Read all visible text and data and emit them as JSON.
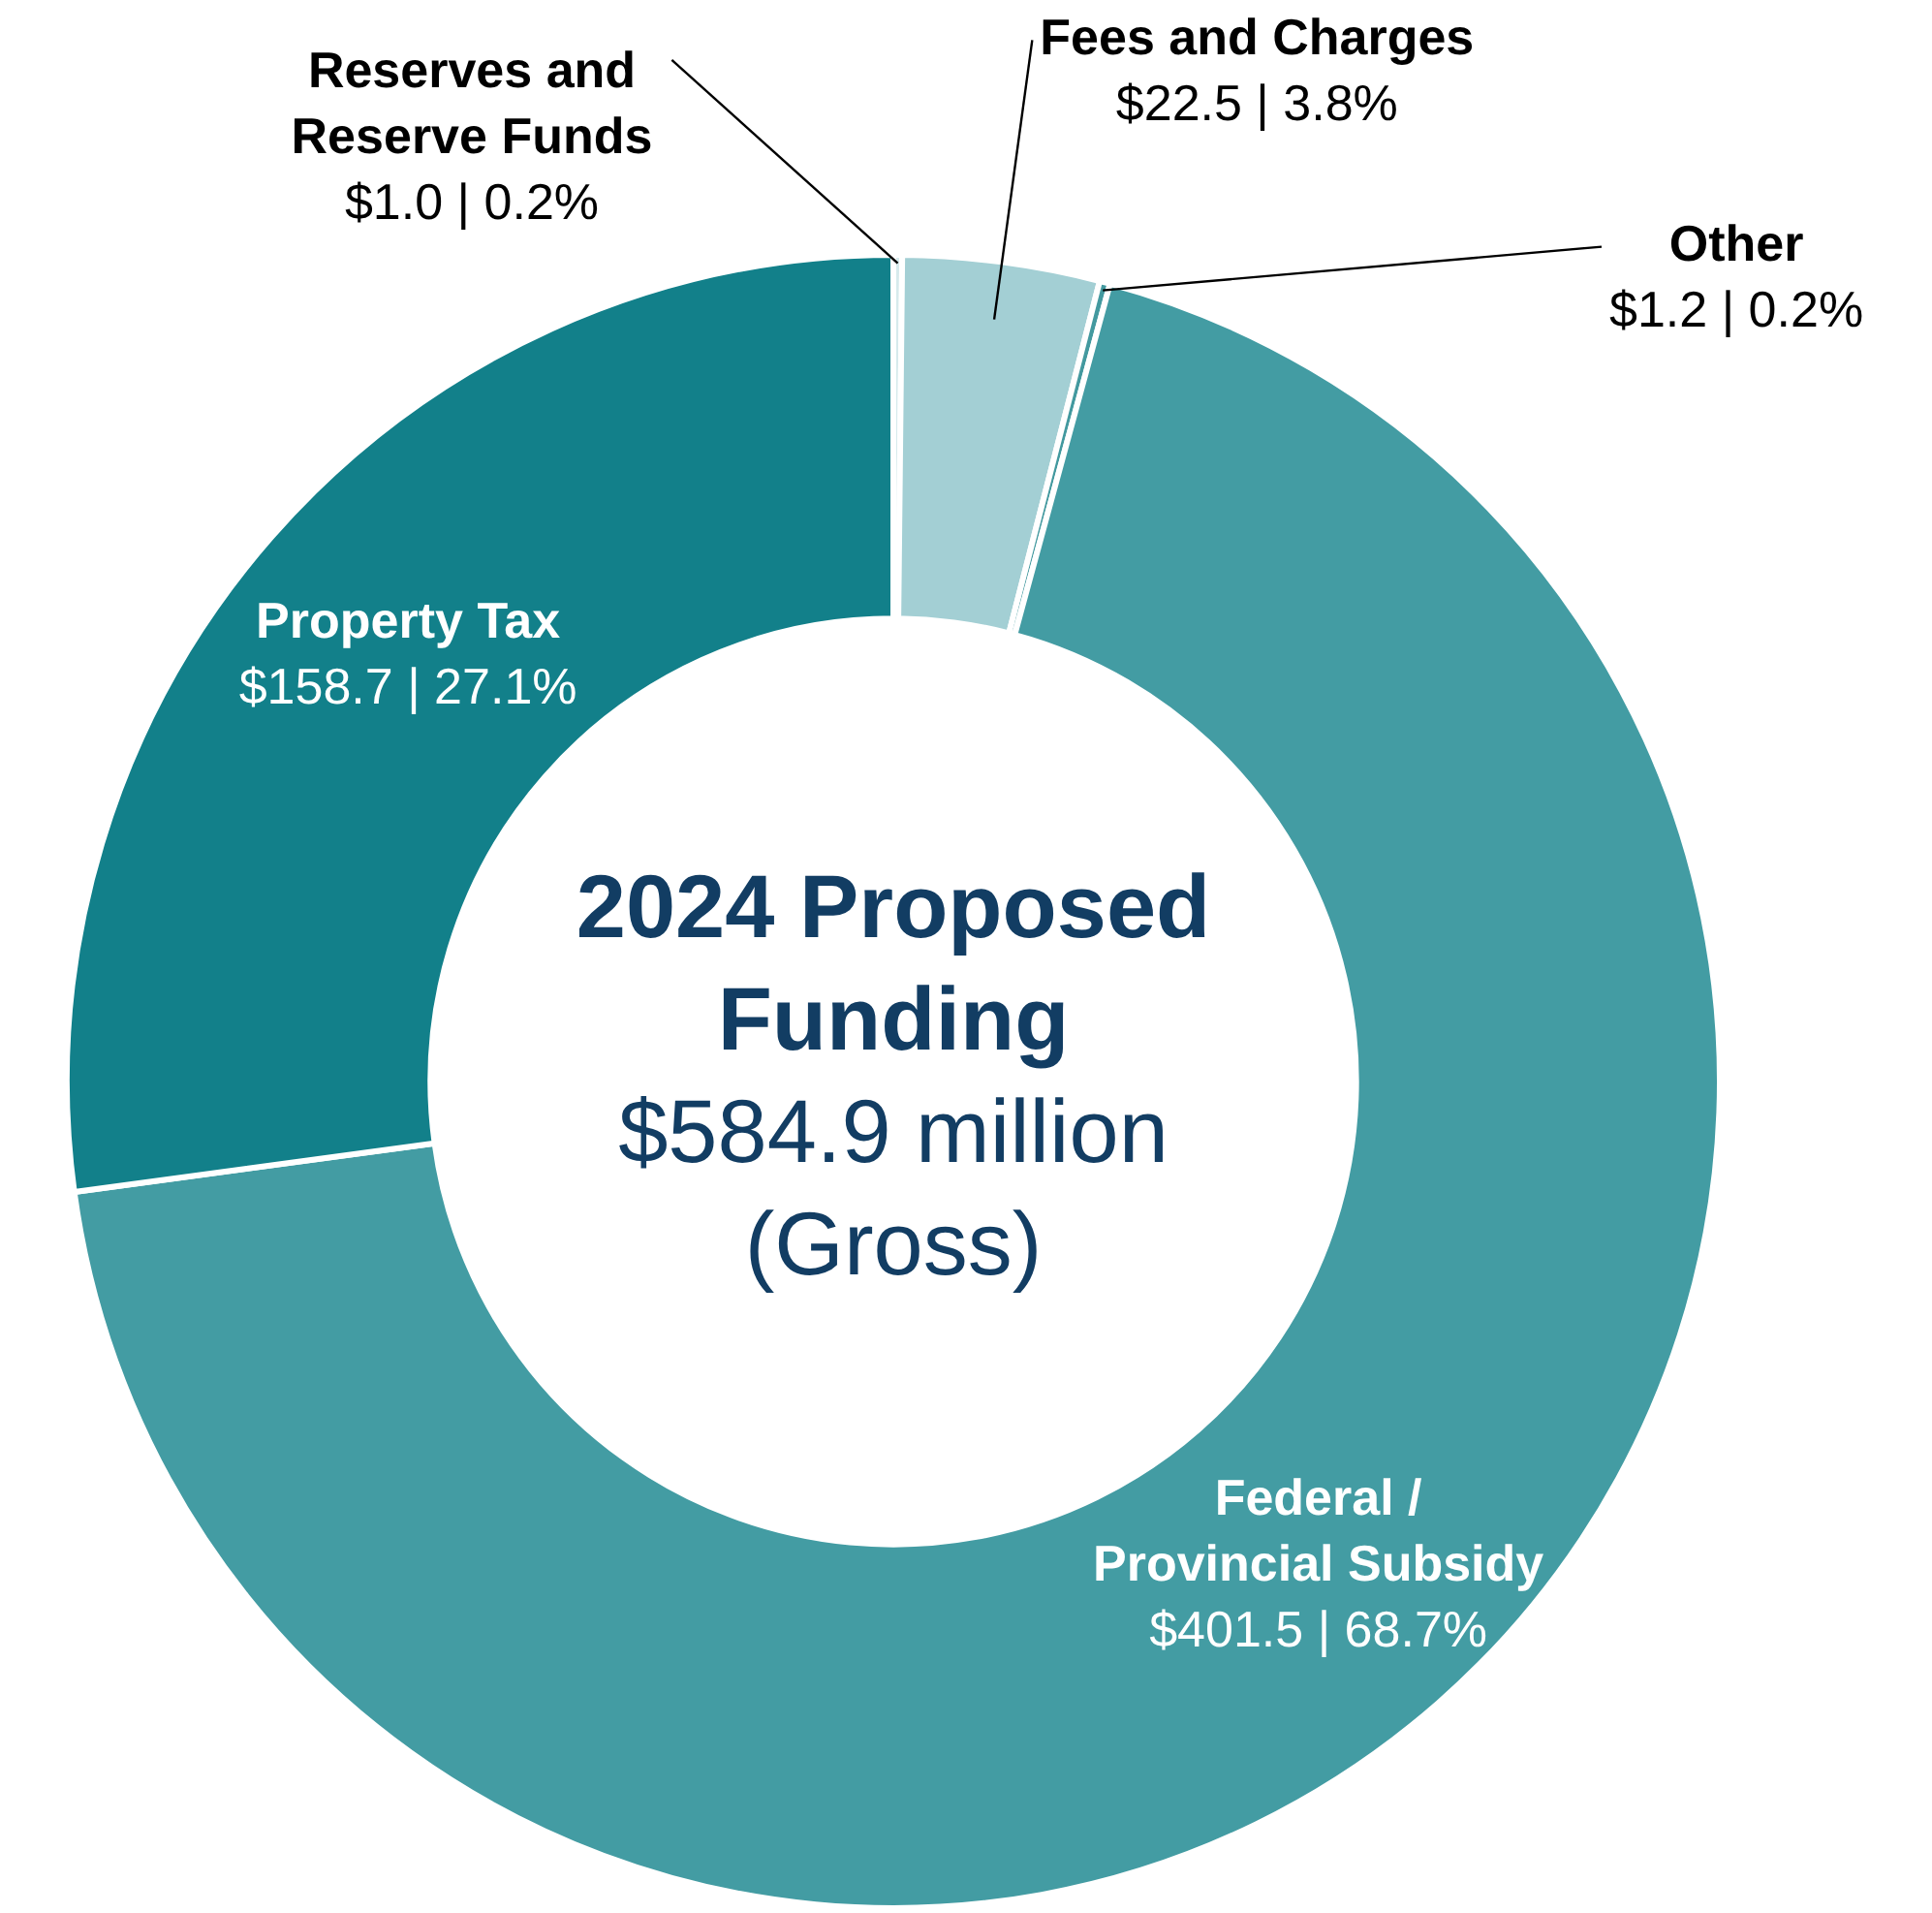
{
  "chart_data": {
    "type": "donut",
    "title": "2024 Proposed Funding",
    "subtitle": "$584.9 million (Gross)",
    "categories": [
      "Reserves and Reserve Funds",
      "Fees and Charges",
      "Other",
      "Federal / Provincial Subsidy",
      "Property Tax"
    ],
    "values": [
      1.0,
      22.5,
      1.2,
      401.5,
      158.7
    ],
    "colors": [
      "#d6eaec",
      "#a3cfd4",
      "#43999f",
      "#439ca3",
      "#12808a"
    ],
    "value_labels": [
      "$1.0 | 0.2%",
      "$22.5 | 3.8%",
      "$1.2 | 0.2%",
      "$401.5 | 68.7%",
      "$158.7 | 27.1%"
    ]
  }
}
